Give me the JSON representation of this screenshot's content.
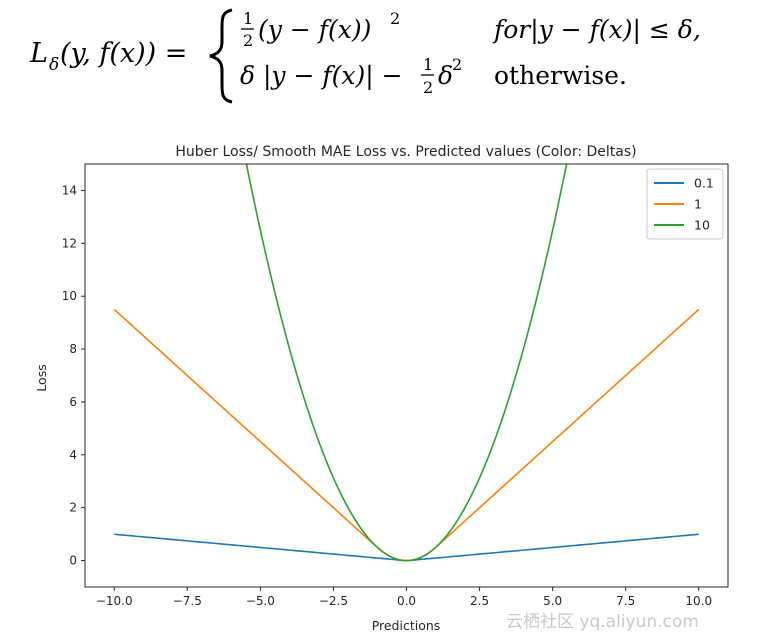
{
  "formula": {
    "lhs": "L",
    "lhs_sub": "δ",
    "lhs_args": "(y, f(x)) =",
    "case1_expr": "(y − f(x))",
    "case1_cond": "for|y − f(x)| ≤ δ,",
    "case2_expr": "δ |y − f(x)| −",
    "case2_delta": "δ",
    "case2_cond": "otherwise.",
    "half_num": "1",
    "half_den": "2",
    "exponent": "2"
  },
  "watermark": "云栖社区 yq.aliyun.com",
  "colors": {
    "series_0": "#1f77b4",
    "series_1": "#ff7f0e",
    "series_2": "#2ca02c"
  },
  "chart_data": {
    "type": "line",
    "title": "Huber Loss/ Smooth MAE Loss vs. Predicted values (Color: Deltas)",
    "xlabel": "Predictions",
    "ylabel": "Loss",
    "xlim": [
      -11.0,
      11.0
    ],
    "ylim": [
      -1.0,
      15.0
    ],
    "xticks": [
      -10.0,
      -7.5,
      -5.0,
      -2.5,
      0.0,
      2.5,
      5.0,
      7.5,
      10.0
    ],
    "xtick_labels": [
      "−10.0",
      "−7.5",
      "−5.0",
      "−2.5",
      "0.0",
      "2.5",
      "5.0",
      "7.5",
      "10.0"
    ],
    "yticks": [
      0,
      2,
      4,
      6,
      8,
      10,
      12,
      14
    ],
    "ytick_labels": [
      "0",
      "2",
      "4",
      "6",
      "8",
      "10",
      "12",
      "14"
    ],
    "x_range": [
      -10.0,
      10.0
    ],
    "true_value": 0.0,
    "legend_position": "top-right",
    "series": [
      {
        "name": "0.1",
        "delta": 0.1,
        "endpoints": [
          [
            -10.0,
            0.995
          ],
          [
            0.0,
            0.0
          ],
          [
            10.0,
            0.995
          ]
        ]
      },
      {
        "name": "1",
        "delta": 1,
        "endpoints": [
          [
            -10.0,
            9.5
          ],
          [
            0.0,
            0.0
          ],
          [
            10.0,
            9.5
          ]
        ]
      },
      {
        "name": "10",
        "delta": 10,
        "endpoints": [
          [
            -5.48,
            15.0
          ],
          [
            0.0,
            0.0
          ],
          [
            5.48,
            15.0
          ]
        ]
      }
    ]
  }
}
